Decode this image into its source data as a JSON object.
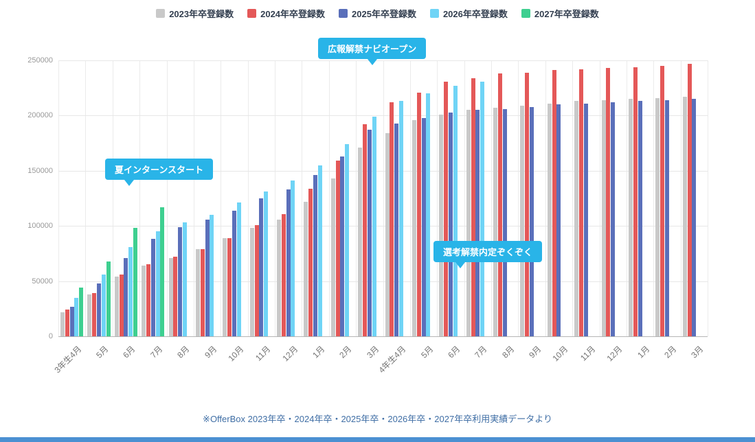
{
  "footer": {
    "note": "※OfferBox 2023年卒・2024年卒・2025年卒・2026年卒・2027年卒利用実績データより"
  },
  "chart_data": {
    "type": "bar",
    "title": "",
    "xlabel": "",
    "ylabel": "",
    "ylim": [
      0,
      250000
    ],
    "yticks": [
      0,
      50000,
      100000,
      150000,
      200000,
      250000
    ],
    "grid": true,
    "legend_position": "top",
    "categories": [
      "3年生4月",
      "5月",
      "6月",
      "7月",
      "8月",
      "9月",
      "10月",
      "11月",
      "12月",
      "1月",
      "2月",
      "3月",
      "4年生4月",
      "5月",
      "6月",
      "7月",
      "8月",
      "9月",
      "10月",
      "11月",
      "12月",
      "1月",
      "2月",
      "3月"
    ],
    "series": [
      {
        "name": "2023年卒登録数",
        "color": "#c9c9c9",
        "values": [
          22000,
          38000,
          54000,
          64000,
          71000,
          79000,
          89000,
          98000,
          106000,
          122000,
          143000,
          171000,
          184000,
          196000,
          201000,
          205000,
          207000,
          209000,
          211000,
          213000,
          214000,
          215000,
          216000,
          217000
        ]
      },
      {
        "name": "2024年卒登録数",
        "color": "#e45858",
        "values": [
          24000,
          39000,
          56000,
          65000,
          72000,
          79000,
          89000,
          101000,
          111000,
          134000,
          159000,
          192000,
          212000,
          221000,
          231000,
          234000,
          238000,
          239000,
          241000,
          242000,
          243000,
          244000,
          245000,
          247000
        ]
      },
      {
        "name": "2025年卒登録数",
        "color": "#5a6fba",
        "values": [
          27000,
          48000,
          71000,
          88000,
          99000,
          106000,
          114000,
          125000,
          133000,
          146000,
          163000,
          187000,
          193000,
          198000,
          203000,
          205000,
          206000,
          208000,
          210000,
          211000,
          212000,
          213000,
          214000,
          215000
        ]
      },
      {
        "name": "2026年卒登録数",
        "color": "#6fd4f6",
        "values": [
          35000,
          56000,
          81000,
          95000,
          103000,
          110000,
          121000,
          131000,
          141000,
          155000,
          174000,
          199000,
          213000,
          220000,
          227000,
          231000,
          null,
          null,
          null,
          null,
          null,
          null,
          null,
          null
        ]
      },
      {
        "name": "2027年卒登録数",
        "color": "#3ecf90",
        "values": [
          44000,
          68000,
          98000,
          117000,
          null,
          null,
          null,
          null,
          null,
          null,
          null,
          null,
          null,
          null,
          null,
          null,
          null,
          null,
          null,
          null,
          null,
          null,
          null,
          null
        ]
      }
    ],
    "annotations": [
      {
        "text": "夏インターンスタート"
      },
      {
        "text": "広報解禁ナビオープン"
      },
      {
        "text": "選考解禁内定ぞくぞく"
      }
    ]
  }
}
